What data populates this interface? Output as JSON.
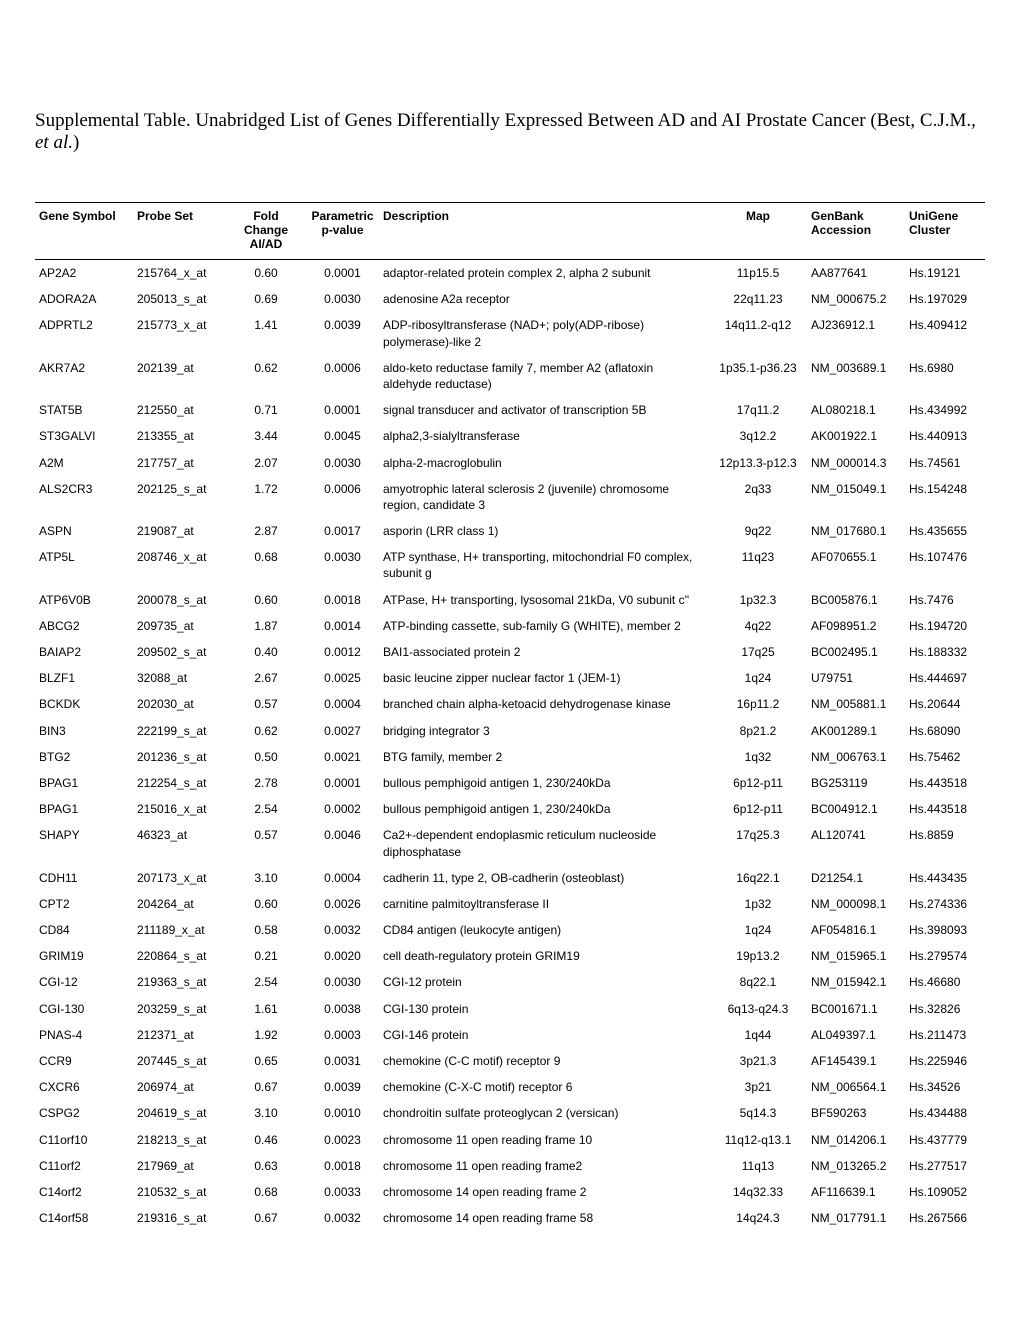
{
  "title_prefix": "Supplemental Table.  Unabridged List of Genes Differentially Expressed Between AD and AI Prostate Cancer (Best, C.J.M., ",
  "title_italic": "et al.",
  "title_suffix": ")",
  "columns": [
    {
      "label": "Gene Symbol",
      "cls": "col-symbol"
    },
    {
      "label": "Probe Set",
      "cls": "col-probe"
    },
    {
      "label": "Fold Change AI/AD",
      "cls": "col-fold"
    },
    {
      "label": "Parametric p-value",
      "cls": "col-pval"
    },
    {
      "label": "Description",
      "cls": "col-desc"
    },
    {
      "label": "Map",
      "cls": "col-map"
    },
    {
      "label": "GenBank Accession",
      "cls": "col-genbank"
    },
    {
      "label": "UniGene Cluster",
      "cls": "col-unigene"
    }
  ],
  "rows": [
    [
      "AP2A2",
      "215764_x_at",
      "0.60",
      "0.0001",
      "adaptor-related protein complex 2, alpha 2 subunit",
      "11p15.5",
      "AA877641",
      "Hs.19121"
    ],
    [
      "ADORA2A",
      "205013_s_at",
      "0.69",
      "0.0030",
      "adenosine A2a receptor",
      "22q11.23",
      "NM_000675.2",
      "Hs.197029"
    ],
    [
      "ADPRTL2",
      "215773_x_at",
      "1.41",
      "0.0039",
      "ADP-ribosyltransferase (NAD+; poly(ADP-ribose) polymerase)-like 2",
      "14q11.2-q12",
      "AJ236912.1",
      "Hs.409412"
    ],
    [
      "AKR7A2",
      "202139_at",
      "0.62",
      "0.0006",
      "aldo-keto reductase family 7, member A2 (aflatoxin aldehyde reductase)",
      "1p35.1-p36.23",
      "NM_003689.1",
      "Hs.6980"
    ],
    [
      "STAT5B",
      "212550_at",
      "0.71",
      "0.0001",
      "signal transducer and activator of transcription 5B",
      "17q11.2",
      "AL080218.1",
      "Hs.434992"
    ],
    [
      "ST3GALVI",
      "213355_at",
      "3.44",
      "0.0045",
      "alpha2,3-sialyltransferase",
      "3q12.2",
      "AK001922.1",
      "Hs.440913"
    ],
    [
      "A2M",
      "217757_at",
      "2.07",
      "0.0030",
      "alpha-2-macroglobulin",
      "12p13.3-p12.3",
      "NM_000014.3",
      "Hs.74561"
    ],
    [
      "ALS2CR3",
      "202125_s_at",
      "1.72",
      "0.0006",
      "amyotrophic lateral sclerosis 2 (juvenile) chromosome region, candidate 3",
      "2q33",
      "NM_015049.1",
      "Hs.154248"
    ],
    [
      "ASPN",
      "219087_at",
      "2.87",
      "0.0017",
      "asporin (LRR class 1)",
      "9q22",
      "NM_017680.1",
      "Hs.435655"
    ],
    [
      "ATP5L",
      "208746_x_at",
      "0.68",
      "0.0030",
      "ATP synthase, H+ transporting, mitochondrial F0 complex, subunit g",
      "11q23",
      "AF070655.1",
      "Hs.107476"
    ],
    [
      "ATP6V0B",
      "200078_s_at",
      "0.60",
      "0.0018",
      "ATPase, H+ transporting, lysosomal 21kDa, V0 subunit c''",
      "1p32.3",
      "BC005876.1",
      "Hs.7476"
    ],
    [
      "ABCG2",
      "209735_at",
      "1.87",
      "0.0014",
      "ATP-binding cassette, sub-family G (WHITE), member 2",
      "4q22",
      "AF098951.2",
      "Hs.194720"
    ],
    [
      "BAIAP2",
      "209502_s_at",
      "0.40",
      "0.0012",
      "BAI1-associated protein 2",
      "17q25",
      "BC002495.1",
      "Hs.188332"
    ],
    [
      "BLZF1",
      "32088_at",
      "2.67",
      "0.0025",
      "basic leucine zipper nuclear factor 1 (JEM-1)",
      "1q24",
      "U79751",
      "Hs.444697"
    ],
    [
      "BCKDK",
      "202030_at",
      "0.57",
      "0.0004",
      "branched chain alpha-ketoacid dehydrogenase kinase",
      "16p11.2",
      "NM_005881.1",
      "Hs.20644"
    ],
    [
      "BIN3",
      "222199_s_at",
      "0.62",
      "0.0027",
      "bridging integrator 3",
      "8p21.2",
      "AK001289.1",
      "Hs.68090"
    ],
    [
      "BTG2",
      "201236_s_at",
      "0.50",
      "0.0021",
      "BTG family, member 2",
      "1q32",
      "NM_006763.1",
      "Hs.75462"
    ],
    [
      "BPAG1",
      "212254_s_at",
      "2.78",
      "0.0001",
      "bullous pemphigoid antigen 1, 230/240kDa",
      "6p12-p11",
      "BG253119",
      "Hs.443518"
    ],
    [
      "BPAG1",
      "215016_x_at",
      "2.54",
      "0.0002",
      "bullous pemphigoid antigen 1, 230/240kDa",
      "6p12-p11",
      "BC004912.1",
      "Hs.443518"
    ],
    [
      "SHAPY",
      "46323_at",
      "0.57",
      "0.0046",
      "Ca2+-dependent endoplasmic reticulum nucleoside diphosphatase",
      "17q25.3",
      "AL120741",
      "Hs.8859"
    ],
    [
      "CDH11",
      "207173_x_at",
      "3.10",
      "0.0004",
      "cadherin 11, type 2, OB-cadherin (osteoblast)",
      "16q22.1",
      "D21254.1",
      "Hs.443435"
    ],
    [
      "CPT2",
      "204264_at",
      "0.60",
      "0.0026",
      "carnitine palmitoyltransferase II",
      "1p32",
      "NM_000098.1",
      "Hs.274336"
    ],
    [
      "CD84",
      "211189_x_at",
      "0.58",
      "0.0032",
      "CD84 antigen (leukocyte antigen)",
      "1q24",
      "AF054816.1",
      "Hs.398093"
    ],
    [
      "GRIM19",
      "220864_s_at",
      "0.21",
      "0.0020",
      "cell death-regulatory protein GRIM19",
      "19p13.2",
      "NM_015965.1",
      "Hs.279574"
    ],
    [
      "CGI-12",
      "219363_s_at",
      "2.54",
      "0.0030",
      "CGI-12 protein",
      "8q22.1",
      "NM_015942.1",
      "Hs.46680"
    ],
    [
      "CGI-130",
      "203259_s_at",
      "1.61",
      "0.0038",
      "CGI-130 protein",
      "6q13-q24.3",
      "BC001671.1",
      "Hs.32826"
    ],
    [
      "PNAS-4",
      "212371_at",
      "1.92",
      "0.0003",
      "CGI-146 protein",
      "1q44",
      "AL049397.1",
      "Hs.211473"
    ],
    [
      "CCR9",
      "207445_s_at",
      "0.65",
      "0.0031",
      "chemokine (C-C motif) receptor 9",
      "3p21.3",
      "AF145439.1",
      "Hs.225946"
    ],
    [
      "CXCR6",
      "206974_at",
      "0.67",
      "0.0039",
      "chemokine (C-X-C motif) receptor 6",
      "3p21",
      "NM_006564.1",
      "Hs.34526"
    ],
    [
      "CSPG2",
      "204619_s_at",
      "3.10",
      "0.0010",
      "chondroitin sulfate proteoglycan 2 (versican)",
      "5q14.3",
      "BF590263",
      "Hs.434488"
    ],
    [
      "C11orf10",
      "218213_s_at",
      "0.46",
      "0.0023",
      "chromosome 11 open reading frame 10",
      "11q12-q13.1",
      "NM_014206.1",
      "Hs.437779"
    ],
    [
      "C11orf2",
      "217969_at",
      "0.63",
      "0.0018",
      "chromosome 11 open reading frame2",
      "11q13",
      "NM_013265.2",
      "Hs.277517"
    ],
    [
      "C14orf2",
      "210532_s_at",
      "0.68",
      "0.0033",
      "chromosome 14 open reading frame 2",
      "14q32.33",
      "AF116639.1",
      "Hs.109052"
    ],
    [
      "C14orf58",
      "219316_s_at",
      "0.67",
      "0.0032",
      "chromosome 14 open reading frame 58",
      "14q24.3",
      "NM_017791.1",
      "Hs.267566"
    ]
  ]
}
